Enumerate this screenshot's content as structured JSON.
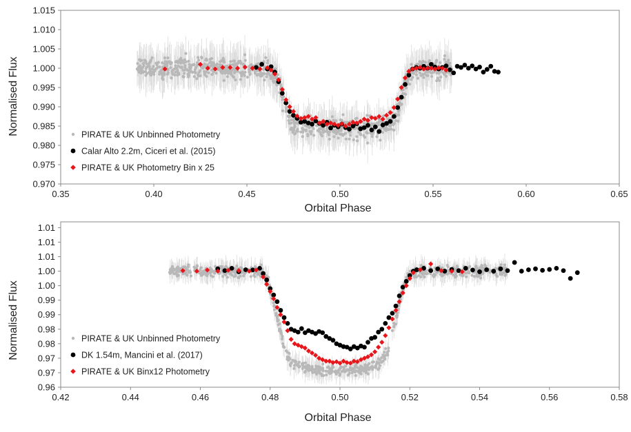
{
  "colors": {
    "unbinned": "#b8b8b8",
    "reference": "#000000",
    "binned": "#e8161a",
    "frame": "#888888"
  },
  "chart_data": [
    {
      "type": "scatter",
      "xlabel": "Orbital Phase",
      "ylabel": "Normalised Flux",
      "xlim": [
        0.35,
        0.65
      ],
      "ylim": [
        0.97,
        1.015
      ],
      "x_ticks": [
        0.35,
        0.4,
        0.45,
        0.5,
        0.55,
        0.6,
        0.65
      ],
      "x_tick_labels": [
        "0.35",
        "0.40",
        "0.45",
        "0.50",
        "0.55",
        "0.60",
        "0.65"
      ],
      "y_ticks": [
        0.97,
        0.975,
        0.98,
        0.985,
        0.99,
        0.995,
        1.0,
        1.005,
        1.01,
        1.015
      ],
      "y_tick_labels": [
        "0.970",
        "0.975",
        "0.980",
        "0.985",
        "0.990",
        "0.995",
        "1.000",
        "1.005",
        "1.010",
        "1.015"
      ],
      "grid": false,
      "legend_position": "bottom-left",
      "transit": {
        "ingress_start": 0.462,
        "ingress_end": 0.476,
        "egress_start": 0.527,
        "egress_end": 0.54
      },
      "series": [
        {
          "name": "PIRATE & UK Unbinned Photometry",
          "marker": "small-dot",
          "color": "#b8b8b8",
          "errorbars": true,
          "x_range": [
            0.391,
            0.56
          ],
          "n_points": 900,
          "depth": 0.0145,
          "scatter": 0.0035
        },
        {
          "name": "Calar Alto 2.2m, Ciceri et al. (2015)",
          "marker": "circle",
          "color": "#000000",
          "x": [
            0.455,
            0.458,
            0.461,
            0.463,
            0.465,
            0.467,
            0.469,
            0.471,
            0.473,
            0.475,
            0.477,
            0.479,
            0.481,
            0.483,
            0.485,
            0.487,
            0.489,
            0.491,
            0.493,
            0.495,
            0.497,
            0.499,
            0.501,
            0.503,
            0.505,
            0.507,
            0.509,
            0.511,
            0.513,
            0.515,
            0.517,
            0.519,
            0.521,
            0.523,
            0.525,
            0.527,
            0.529,
            0.531,
            0.533,
            0.535,
            0.537,
            0.539,
            0.541,
            0.543,
            0.545,
            0.547,
            0.549,
            0.551,
            0.553,
            0.555,
            0.557,
            0.559,
            0.561,
            0.563,
            0.565,
            0.567,
            0.569,
            0.571,
            0.573,
            0.575,
            0.577,
            0.579,
            0.581,
            0.583,
            0.585
          ],
          "y": [
            1.0002,
            1.001,
            0.9998,
            1.0004,
            0.999,
            0.9965,
            0.9935,
            0.991,
            0.9888,
            0.9878,
            0.987,
            0.986,
            0.9862,
            0.9858,
            0.9855,
            0.9863,
            0.9857,
            0.9852,
            0.986,
            0.9845,
            0.9852,
            0.9848,
            0.9855,
            0.9846,
            0.9842,
            0.985,
            0.9856,
            0.9843,
            0.9846,
            0.9852,
            0.984,
            0.9848,
            0.9836,
            0.9853,
            0.9857,
            0.9862,
            0.9875,
            0.9898,
            0.9925,
            0.9958,
            0.9982,
            0.9998,
            1.0002,
            1.0,
            1.0005,
            1.0,
            1.001,
            1.0003,
            0.9998,
            1.0002,
            1.0006,
            0.9996,
            0.9988,
            1.0005,
            1.0002,
            1.0008,
            1.0,
            1.0006,
            0.9998,
            1.0003,
            0.999,
            0.9997,
            1.0005,
            0.9992,
            0.999
          ]
        },
        {
          "name": "PIRATE & UK Photometry Bin x 25",
          "marker": "diamond",
          "color": "#e8161a",
          "x": [
            0.406,
            0.425,
            0.429,
            0.433,
            0.437,
            0.441,
            0.445,
            0.449,
            0.453,
            0.457,
            0.461,
            0.463,
            0.465,
            0.467,
            0.469,
            0.471,
            0.473,
            0.475,
            0.477,
            0.479,
            0.481,
            0.483,
            0.485,
            0.487,
            0.489,
            0.491,
            0.493,
            0.495,
            0.497,
            0.499,
            0.501,
            0.503,
            0.505,
            0.507,
            0.509,
            0.511,
            0.513,
            0.515,
            0.517,
            0.519,
            0.521,
            0.523,
            0.525,
            0.527,
            0.529,
            0.531,
            0.533,
            0.535,
            0.537,
            0.539,
            0.541,
            0.543,
            0.545,
            0.547,
            0.549,
            0.551,
            0.553,
            0.555,
            0.557
          ],
          "y": [
            0.9998,
            1.001,
            1.0,
            0.9998,
            1.0002,
            1.0002,
            1.0,
            1.0003,
            1.0,
            0.9998,
            1.0001,
            0.9995,
            0.9985,
            0.997,
            0.9945,
            0.9918,
            0.99,
            0.9888,
            0.9876,
            0.987,
            0.9872,
            0.9875,
            0.9868,
            0.9872,
            0.9858,
            0.9862,
            0.9855,
            0.9858,
            0.9855,
            0.9852,
            0.9856,
            0.985,
            0.9855,
            0.986,
            0.9858,
            0.9862,
            0.9868,
            0.9865,
            0.9872,
            0.987,
            0.9875,
            0.9868,
            0.9878,
            0.9885,
            0.9898,
            0.992,
            0.995,
            0.9975,
            0.9992,
            0.9998,
            1.0,
            1.0002,
            0.9998,
            1.0,
            1.0,
            0.9998,
            1.0001,
            1.0,
            0.9995
          ]
        }
      ]
    },
    {
      "type": "scatter",
      "xlabel": "Orbital Phase",
      "ylabel": "Normalised Flux",
      "xlim": [
        0.42,
        0.58
      ],
      "ylim": [
        0.96,
        1.017
      ],
      "x_ticks": [
        0.42,
        0.44,
        0.46,
        0.48,
        0.5,
        0.52,
        0.54,
        0.56,
        0.58
      ],
      "x_tick_labels": [
        "0.42",
        "0.44",
        "0.46",
        "0.48",
        "0.50",
        "0.52",
        "0.54",
        "0.56",
        "0.58"
      ],
      "y_ticks": [
        0.96,
        0.965,
        0.97,
        0.975,
        0.98,
        0.985,
        0.99,
        0.995,
        1.0,
        1.005,
        1.01,
        1.015
      ],
      "y_tick_labels": [
        "0.96",
        "0.97",
        "0.97",
        "0.98",
        "0.98",
        "0.99",
        "0.99",
        "1.00",
        "1.00",
        "1.01",
        "1.01",
        "1.01"
      ],
      "grid": false,
      "legend_position": "bottom-left",
      "transit": {
        "ingress_start": 0.477,
        "ingress_end": 0.487,
        "egress_start": 0.511,
        "egress_end": 0.521
      },
      "series": [
        {
          "name": "PIRATE & UK Unbinned Photometry",
          "marker": "small-dot",
          "color": "#b8b8b8",
          "errorbars": true,
          "x_range": [
            0.451,
            0.548
          ],
          "n_points": 760,
          "depth": 0.032,
          "scatter": 0.0025
        },
        {
          "name": "DK 1.54m, Mancini et al. (2017)",
          "marker": "circle",
          "color": "#000000",
          "x": [
            0.465,
            0.467,
            0.469,
            0.471,
            0.473,
            0.475,
            0.477,
            0.478,
            0.479,
            0.48,
            0.481,
            0.482,
            0.483,
            0.484,
            0.485,
            0.486,
            0.487,
            0.488,
            0.489,
            0.49,
            0.491,
            0.492,
            0.493,
            0.494,
            0.495,
            0.496,
            0.497,
            0.498,
            0.499,
            0.5,
            0.501,
            0.502,
            0.503,
            0.504,
            0.505,
            0.506,
            0.507,
            0.508,
            0.509,
            0.51,
            0.511,
            0.512,
            0.513,
            0.514,
            0.515,
            0.516,
            0.517,
            0.518,
            0.519,
            0.52,
            0.521,
            0.522,
            0.524,
            0.526,
            0.528,
            0.53,
            0.532,
            0.534,
            0.536,
            0.538,
            0.54,
            0.542,
            0.544,
            0.546,
            0.548,
            0.55,
            0.552,
            0.554,
            0.556,
            0.558,
            0.56,
            0.562,
            0.564,
            0.566,
            0.568
          ],
          "y": [
            1.0008,
            1.0002,
            1.001,
            0.9998,
            1.0005,
            1.0004,
            1.001,
            0.9992,
            0.997,
            0.994,
            0.9918,
            0.9895,
            0.9865,
            0.984,
            0.982,
            0.98,
            0.9795,
            0.979,
            0.9802,
            0.9788,
            0.9795,
            0.979,
            0.9785,
            0.9792,
            0.9788,
            0.9775,
            0.9768,
            0.9762,
            0.975,
            0.9745,
            0.974,
            0.9738,
            0.9732,
            0.974,
            0.9735,
            0.9742,
            0.9738,
            0.9755,
            0.9768,
            0.9772,
            0.979,
            0.98,
            0.982,
            0.984,
            0.9855,
            0.988,
            0.9915,
            0.9945,
            0.9965,
            0.9985,
            1.0,
            1.0005,
            1.001,
            1.0002,
            1.0008,
            1.0,
            1.0006,
            1.0002,
            1.001,
            1.0004,
            0.9998,
            1.0005,
            1.0,
            1.0008,
            1.0002,
            1.003,
            1.0,
            1.0005,
            1.0008,
            1.0003,
            1.0006,
            1.001,
            1.0002,
            0.9975,
            0.9995
          ]
        },
        {
          "name": "PIRATE & UK Binx12 Photometry",
          "marker": "diamond",
          "color": "#e8161a",
          "x": [
            0.455,
            0.459,
            0.462,
            0.465,
            0.468,
            0.471,
            0.474,
            0.476,
            0.478,
            0.479,
            0.48,
            0.481,
            0.482,
            0.483,
            0.484,
            0.485,
            0.486,
            0.487,
            0.488,
            0.489,
            0.49,
            0.491,
            0.492,
            0.493,
            0.494,
            0.495,
            0.496,
            0.497,
            0.498,
            0.499,
            0.5,
            0.501,
            0.502,
            0.503,
            0.504,
            0.505,
            0.506,
            0.507,
            0.508,
            0.509,
            0.51,
            0.511,
            0.512,
            0.513,
            0.514,
            0.515,
            0.516,
            0.517,
            0.518,
            0.519,
            0.52,
            0.521,
            0.523,
            0.526,
            0.529,
            0.532,
            0.535
          ],
          "y": [
            1.0002,
            1.0,
            1.0004,
            1.0,
            1.0003,
            1.0002,
            1.0,
            1.0004,
            0.998,
            0.9955,
            0.993,
            0.9905,
            0.9875,
            0.985,
            0.9825,
            0.9795,
            0.9765,
            0.975,
            0.9745,
            0.974,
            0.9735,
            0.9725,
            0.9718,
            0.971,
            0.97,
            0.9695,
            0.969,
            0.969,
            0.9685,
            0.9688,
            0.9683,
            0.969,
            0.9685,
            0.9683,
            0.969,
            0.9688,
            0.9695,
            0.97,
            0.9705,
            0.9712,
            0.9722,
            0.9738,
            0.9755,
            0.9778,
            0.9805,
            0.9835,
            0.9865,
            0.9895,
            0.9925,
            0.995,
            0.9975,
            0.9995,
            1.0005,
            1.0025,
            1.0002,
            1.0,
            0.9998
          ]
        }
      ]
    }
  ]
}
